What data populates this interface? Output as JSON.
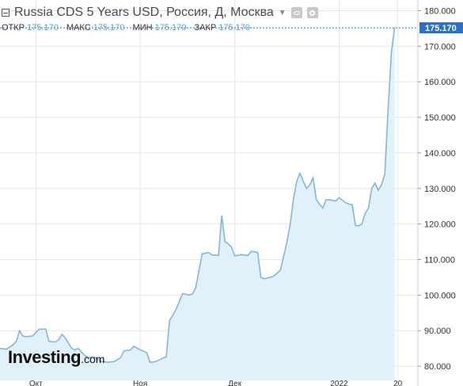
{
  "header": {
    "title": "Russia CDS 5 Years USD, Россия, Д, Москва",
    "ohlc": [
      {
        "label": "ОТКР",
        "value": "175.170"
      },
      {
        "label": "МАКС",
        "value": "175.170"
      },
      {
        "label": "МИН",
        "value": "175.170"
      },
      {
        "label": "ЗАКР",
        "value": "175.170"
      }
    ]
  },
  "watermark": {
    "main": "Investing",
    "sub": ".com"
  },
  "colors": {
    "line": "#7fb8dc",
    "fill": "#e1f1fa",
    "badge": "#2a6fc9",
    "grid": "#e6e6e6",
    "current_line": "#2a6fc9"
  },
  "chart_data": {
    "type": "area",
    "current_price": "175.170",
    "ylim": [
      76,
      183
    ],
    "y_ticks": [
      "80.000",
      "90.000",
      "100.000",
      "110.000",
      "120.000",
      "130.000",
      "140.000",
      "150.000",
      "160.000",
      "170.000",
      "180.000"
    ],
    "x_ticks": [
      {
        "label": "Окт",
        "index": 11
      },
      {
        "label": "Ноя",
        "index": 43
      },
      {
        "label": "Дек",
        "index": 72
      },
      {
        "label": "2022",
        "index": 104
      },
      {
        "label": "20",
        "index": 122
      }
    ],
    "x_count": 124,
    "series": [
      {
        "points": [
          [
            0,
            85.0
          ],
          [
            2,
            84.8
          ],
          [
            4,
            86.0
          ],
          [
            5,
            87.0
          ],
          [
            6,
            90.0
          ],
          [
            7,
            88.5
          ],
          [
            8,
            88.3
          ],
          [
            10,
            88.5
          ],
          [
            11,
            89.5
          ],
          [
            12,
            90.4
          ],
          [
            14,
            90.5
          ],
          [
            15,
            87.0
          ],
          [
            17,
            86.8
          ],
          [
            18,
            87.5
          ],
          [
            19,
            89.0
          ],
          [
            20,
            88.0
          ],
          [
            22,
            85.0
          ],
          [
            23,
            84.6
          ],
          [
            24,
            85.0
          ],
          [
            26,
            83.0
          ],
          [
            27,
            82.4
          ],
          [
            28,
            82.5
          ],
          [
            29,
            82.6
          ],
          [
            31,
            81.4
          ],
          [
            33,
            81.1
          ],
          [
            35,
            81.3
          ],
          [
            37,
            82.4
          ],
          [
            38,
            84.3
          ],
          [
            40,
            84.6
          ],
          [
            41,
            85.6
          ],
          [
            43,
            84.6
          ],
          [
            44,
            84.2
          ],
          [
            45,
            83.8
          ],
          [
            46,
            81.1
          ],
          [
            47,
            81.2
          ],
          [
            48,
            81.4
          ],
          [
            50,
            82.3
          ],
          [
            51,
            82.6
          ],
          [
            52,
            92.8
          ],
          [
            54,
            96.0
          ],
          [
            56,
            100.4
          ],
          [
            58,
            100.0
          ],
          [
            59,
            100.3
          ],
          [
            60,
            102.0
          ],
          [
            62,
            111.6
          ],
          [
            64,
            112.0
          ],
          [
            65,
            111.3
          ],
          [
            67,
            111.2
          ],
          [
            68,
            122.4
          ],
          [
            69,
            115.0
          ],
          [
            70,
            114.4
          ],
          [
            71,
            113.5
          ],
          [
            72,
            111.0
          ],
          [
            74,
            111.4
          ],
          [
            76,
            111.1
          ],
          [
            77,
            112.3
          ],
          [
            78,
            112.2
          ],
          [
            79,
            112.0
          ],
          [
            80,
            105.0
          ],
          [
            81,
            104.6
          ],
          [
            83,
            105.0
          ],
          [
            84,
            105.4
          ],
          [
            86,
            107.0
          ],
          [
            88,
            115.0
          ],
          [
            89,
            120.0
          ],
          [
            90,
            127.0
          ],
          [
            91,
            132.0
          ],
          [
            92,
            134.3
          ],
          [
            93,
            132.0
          ],
          [
            94,
            130.0
          ],
          [
            95,
            131.0
          ],
          [
            96,
            133.0
          ],
          [
            97,
            127.0
          ],
          [
            98,
            125.5
          ],
          [
            99,
            124.5
          ],
          [
            100,
            126.8
          ],
          [
            101,
            126.8
          ],
          [
            103,
            126.5
          ],
          [
            104,
            127.4
          ],
          [
            106,
            126.0
          ],
          [
            107,
            125.6
          ],
          [
            108,
            125.4
          ],
          [
            109,
            119.6
          ],
          [
            110,
            119.5
          ],
          [
            111,
            120.0
          ],
          [
            112,
            123.0
          ],
          [
            113,
            124.5
          ],
          [
            114,
            130.0
          ],
          [
            115,
            131.5
          ],
          [
            116,
            129.5
          ],
          [
            117,
            131.0
          ],
          [
            118,
            134.0
          ],
          [
            119,
            152.0
          ],
          [
            120,
            168.0
          ],
          [
            121,
            175.17
          ]
        ]
      }
    ]
  }
}
